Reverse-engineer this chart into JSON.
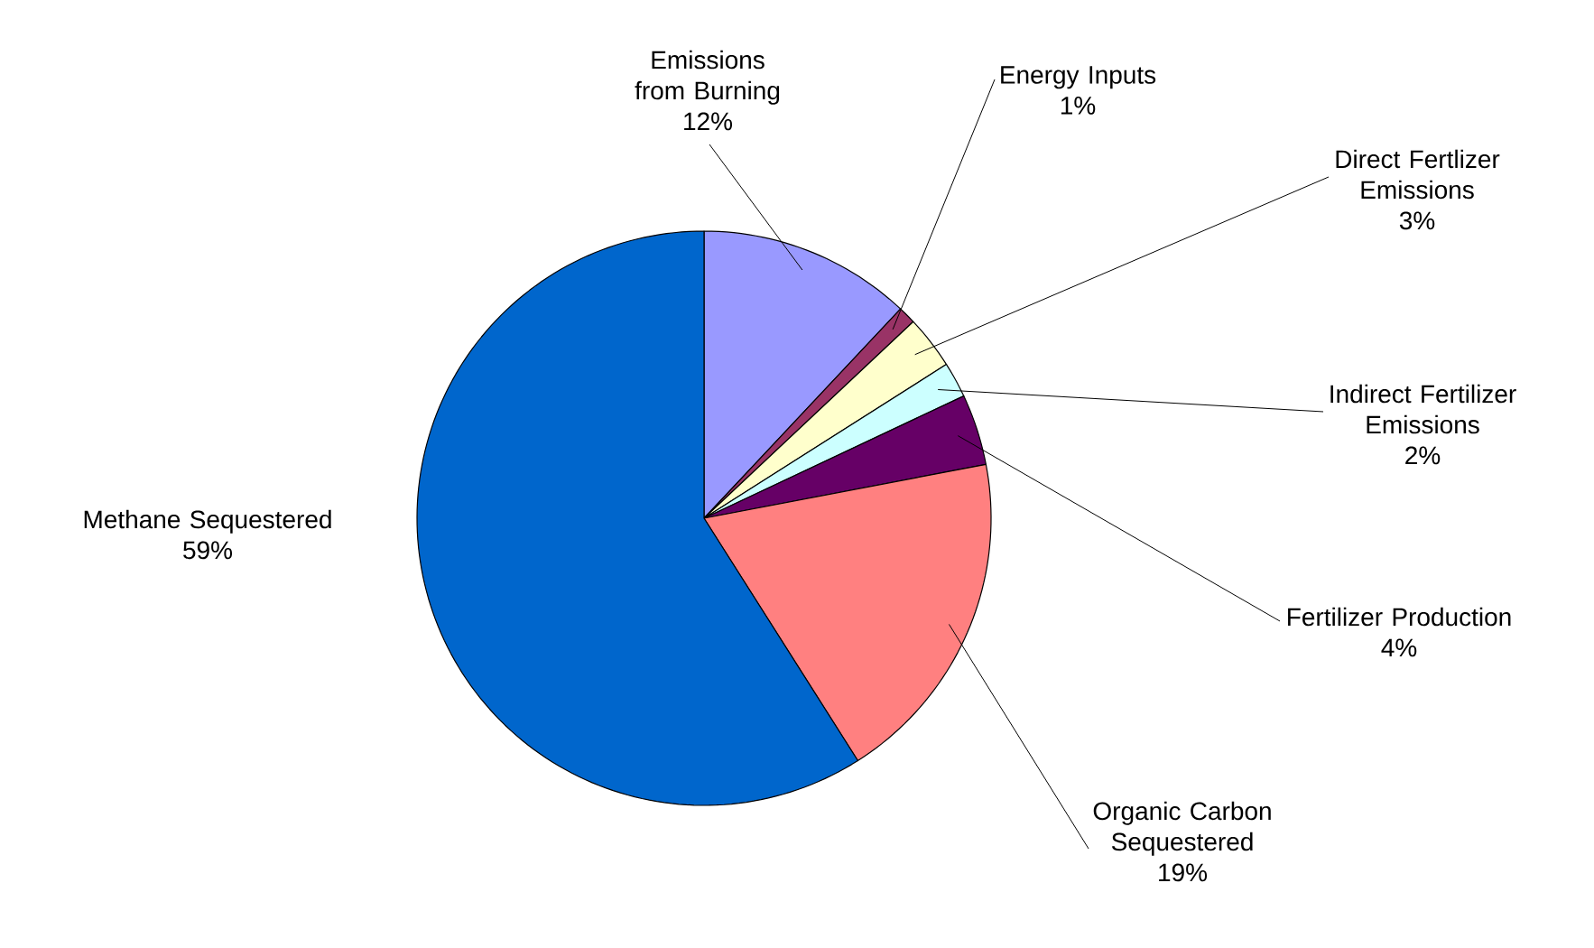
{
  "chart_data": {
    "type": "pie",
    "categories": [
      "Emissions from Burning",
      "Energy Inputs",
      "Direct Fertlizer Emissions",
      "Indirect Fertilizer Emissions",
      "Fertilizer Production",
      "Organic Carbon Sequestered",
      "Methane Sequestered"
    ],
    "values": [
      12,
      1,
      3,
      2,
      4,
      19,
      59
    ],
    "value_labels": [
      "12%",
      "1%",
      "3%",
      "2%",
      "4%",
      "19%",
      "59%"
    ],
    "colors": [
      "#9999ff",
      "#993366",
      "#ffffcc",
      "#ccffff",
      "#660066",
      "#ff8080",
      "#0066cc"
    ]
  }
}
